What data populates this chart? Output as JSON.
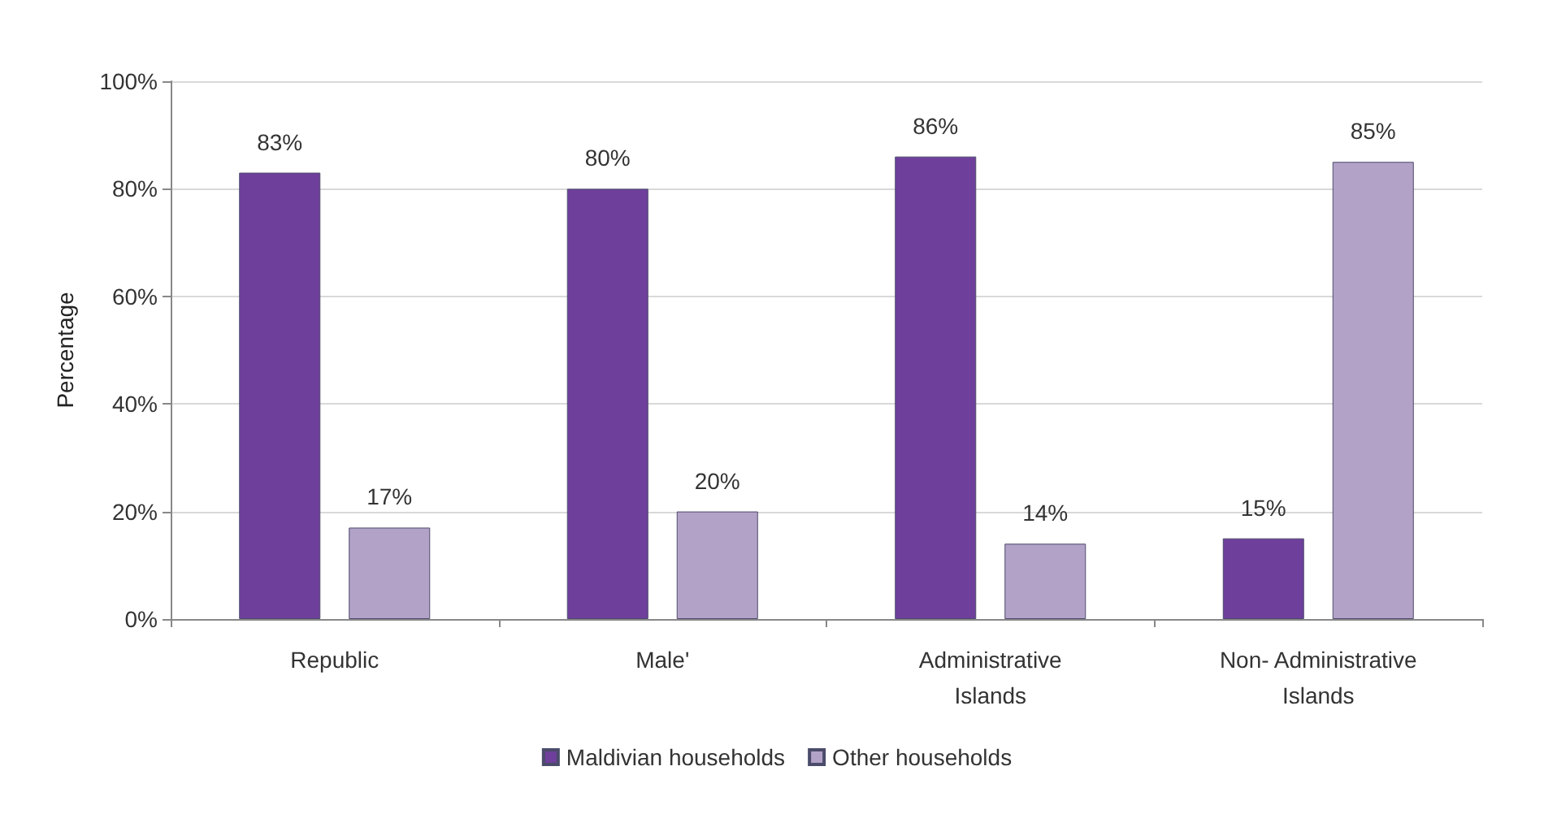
{
  "chart_data": {
    "type": "bar",
    "ylabel": "Percentage",
    "categories": [
      "Republic",
      "Male'",
      "Administrative\nIslands",
      "Non- Administrative\nIslands"
    ],
    "series": [
      {
        "name": "Maldivian households",
        "color": "#6f3f9c",
        "values": [
          83,
          80,
          86,
          15
        ],
        "value_labels": [
          "83%",
          "80%",
          "86%",
          "15%"
        ]
      },
      {
        "name": "Other households",
        "color": "#b3a2c7",
        "values": [
          17,
          20,
          14,
          85
        ],
        "value_labels": [
          "17%",
          "20%",
          "14%",
          "85%"
        ]
      }
    ],
    "ylim": [
      0,
      100
    ],
    "yticks": [
      {
        "value": 0,
        "label": "0%"
      },
      {
        "value": 20,
        "label": "20%"
      },
      {
        "value": 40,
        "label": "40%"
      },
      {
        "value": 60,
        "label": "60%"
      },
      {
        "value": 80,
        "label": "80%"
      },
      {
        "value": 100,
        "label": "100%"
      }
    ],
    "grid": "y",
    "legend": "bottom"
  }
}
